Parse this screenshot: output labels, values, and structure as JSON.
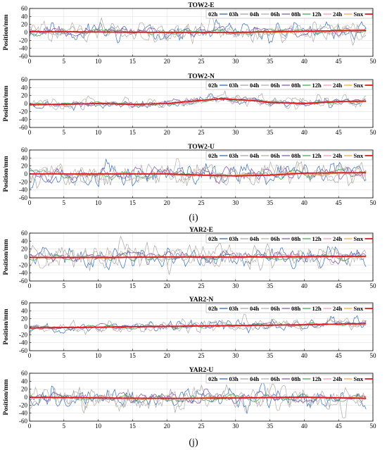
{
  "figure_labels": [
    "(i)",
    "(j)"
  ],
  "colors": {
    "02h": "#1f5fa8",
    "03h": "#9e9e9e",
    "04h": "#b3a7a0",
    "06h": "#7e4fa0",
    "08h": "#3aa046",
    "12h": "#f08fb5",
    "24h": "#f0a030",
    "Snx": "#e0191c",
    "grid": "#e3e3e3"
  },
  "chart_data": [
    {
      "type": "line",
      "title": "TOW2-E",
      "xlabel": "",
      "ylabel": "Position/mm",
      "xlim": [
        0,
        50
      ],
      "ylim": [
        -60,
        60
      ],
      "xticks": [
        0,
        5,
        10,
        15,
        20,
        25,
        30,
        35,
        40,
        45,
        50
      ],
      "yticks": [
        -60,
        -40,
        -20,
        0,
        20,
        40,
        60
      ],
      "grid": true,
      "legend": "top-right",
      "series_names": [
        "02h",
        "03h",
        "04h",
        "06h",
        "08h",
        "12h",
        "24h",
        "Snx"
      ],
      "snx": {
        "x": [
          0,
          10,
          20,
          30,
          40,
          49
        ],
        "y": [
          2,
          1,
          0,
          0,
          3,
          5
        ]
      },
      "noise_amplitude": [
        28,
        34,
        30,
        22,
        16,
        12,
        7
      ],
      "seed": 11
    },
    {
      "type": "line",
      "title": "TOW2-N",
      "xlabel": "",
      "ylabel": "Position/mm",
      "xlim": [
        0,
        50
      ],
      "ylim": [
        -60,
        60
      ],
      "xticks": [
        0,
        5,
        10,
        15,
        20,
        25,
        30,
        35,
        40,
        45,
        50
      ],
      "yticks": [
        -60,
        -40,
        -20,
        0,
        20,
        40,
        60
      ],
      "grid": true,
      "legend": "top-right",
      "series_names": [
        "02h",
        "03h",
        "04h",
        "06h",
        "08h",
        "12h",
        "24h",
        "Snx"
      ],
      "snx": {
        "x": [
          0,
          5,
          10,
          15,
          20,
          25,
          28,
          32,
          35,
          40,
          45,
          49
        ],
        "y": [
          -3,
          -2,
          0,
          -2,
          0,
          8,
          12,
          8,
          3,
          0,
          5,
          6
        ]
      },
      "noise_amplitude": [
        14,
        18,
        16,
        12,
        9,
        7,
        5
      ],
      "seed": 23
    },
    {
      "type": "line",
      "title": "TOW2-U",
      "xlabel": "",
      "ylabel": "Position/mm",
      "xlim": [
        0,
        50
      ],
      "ylim": [
        -60,
        60
      ],
      "xticks": [
        0,
        5,
        10,
        15,
        20,
        25,
        30,
        35,
        40,
        45,
        50
      ],
      "yticks": [
        -60,
        -40,
        -20,
        0,
        20,
        40,
        60
      ],
      "grid": true,
      "legend": "top-right",
      "series_names": [
        "02h",
        "03h",
        "04h",
        "06h",
        "08h",
        "12h",
        "24h",
        "Snx"
      ],
      "snx": {
        "x": [
          0,
          10,
          20,
          25,
          30,
          35,
          40,
          45,
          49
        ],
        "y": [
          0,
          0,
          0,
          -3,
          -5,
          -3,
          2,
          3,
          3
        ]
      },
      "noise_amplitude": [
        36,
        40,
        36,
        30,
        24,
        18,
        12
      ],
      "seed": 37
    },
    {
      "type": "line",
      "title": "YAR2-E",
      "xlabel": "",
      "ylabel": "Position/mm",
      "xlim": [
        0,
        50
      ],
      "ylim": [
        -60,
        60
      ],
      "xticks": [
        0,
        5,
        10,
        15,
        20,
        25,
        30,
        35,
        40,
        45,
        50
      ],
      "yticks": [
        -60,
        -40,
        -20,
        0,
        20,
        40,
        60
      ],
      "grid": true,
      "legend": "top-right",
      "series_names": [
        "02h",
        "03h",
        "04h",
        "06h",
        "08h",
        "12h",
        "24h",
        "Snx"
      ],
      "snx": {
        "x": [
          0,
          10,
          20,
          30,
          40,
          49
        ],
        "y": [
          -1,
          -1,
          0,
          0,
          1,
          2
        ]
      },
      "noise_amplitude": [
        34,
        42,
        36,
        24,
        16,
        10,
        6
      ],
      "seed": 41
    },
    {
      "type": "line",
      "title": "YAR2-N",
      "xlabel": "",
      "ylabel": "Position/mm",
      "xlim": [
        0,
        50
      ],
      "ylim": [
        -60,
        60
      ],
      "xticks": [
        0,
        5,
        10,
        15,
        20,
        25,
        30,
        35,
        40,
        45,
        50
      ],
      "yticks": [
        -60,
        -40,
        -20,
        0,
        20,
        40,
        60
      ],
      "grid": true,
      "legend": "top-right",
      "series_names": [
        "02h",
        "03h",
        "04h",
        "06h",
        "08h",
        "12h",
        "24h",
        "Snx"
      ],
      "snx": {
        "x": [
          0,
          10,
          20,
          30,
          40,
          49
        ],
        "y": [
          -3,
          -1,
          1,
          3,
          5,
          8
        ]
      },
      "noise_amplitude": [
        18,
        22,
        18,
        12,
        9,
        6,
        4
      ],
      "seed": 53
    },
    {
      "type": "line",
      "title": "YAR2-U",
      "xlabel": "",
      "ylabel": "Position/mm",
      "xlim": [
        0,
        50
      ],
      "ylim": [
        -60,
        60
      ],
      "xticks": [
        0,
        5,
        10,
        15,
        20,
        25,
        30,
        35,
        40,
        45,
        50
      ],
      "yticks": [
        -60,
        -40,
        -20,
        0,
        20,
        40,
        60
      ],
      "grid": true,
      "legend": "top-right",
      "series_names": [
        "02h",
        "03h",
        "04h",
        "06h",
        "08h",
        "12h",
        "24h",
        "Snx"
      ],
      "snx": {
        "x": [
          0,
          10,
          20,
          30,
          40,
          49
        ],
        "y": [
          0,
          -2,
          -3,
          -2,
          0,
          -3
        ]
      },
      "noise_amplitude": [
        32,
        38,
        32,
        24,
        18,
        12,
        8
      ],
      "seed": 67
    }
  ]
}
